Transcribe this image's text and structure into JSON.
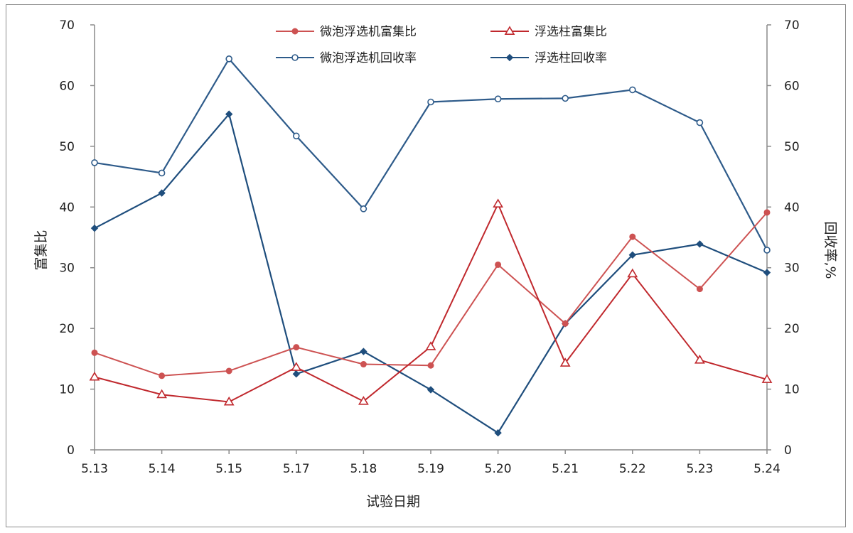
{
  "chart_data": {
    "type": "line",
    "categories": [
      "5.13",
      "5.14",
      "5.15",
      "5.17",
      "5.18",
      "5.19",
      "5.20",
      "5.21",
      "5.22",
      "5.23",
      "5.24"
    ],
    "xlabel": "试验日期",
    "ylabel_left": "富集比",
    "ylabel_right": "回收率,%",
    "ylim_left": [
      0,
      70
    ],
    "ylim_right": [
      0,
      70
    ],
    "yticks": [
      "0",
      "10",
      "20",
      "30",
      "40",
      "50",
      "60",
      "70"
    ],
    "legend_position": "top-center",
    "grid": false,
    "series": [
      {
        "name": "微泡浮选机富集比",
        "axis": "left",
        "marker": "filled-circle",
        "color": "#cd5252",
        "values": [
          16.0,
          12.2,
          13.0,
          16.9,
          14.1,
          13.9,
          30.5,
          20.8,
          35.1,
          26.5,
          39.1
        ]
      },
      {
        "name": "浮选柱富集比",
        "axis": "left",
        "marker": "open-triangle",
        "color": "#c0282d",
        "values": [
          12.0,
          9.1,
          7.9,
          13.6,
          8.0,
          17.0,
          40.5,
          14.3,
          29.0,
          14.8,
          11.6
        ]
      },
      {
        "name": "微泡浮选机回收率",
        "axis": "right",
        "marker": "open-circle",
        "color": "#2e5b8a",
        "values": [
          47.3,
          45.6,
          64.4,
          51.7,
          39.7,
          57.3,
          57.8,
          57.9,
          59.3,
          53.9,
          32.9
        ]
      },
      {
        "name": "浮选柱回收率",
        "axis": "right",
        "marker": "filled-diamond",
        "color": "#1f4e7d",
        "values": [
          36.5,
          42.3,
          55.3,
          12.5,
          16.2,
          9.9,
          2.8,
          20.8,
          32.1,
          33.9,
          29.2
        ]
      }
    ]
  }
}
